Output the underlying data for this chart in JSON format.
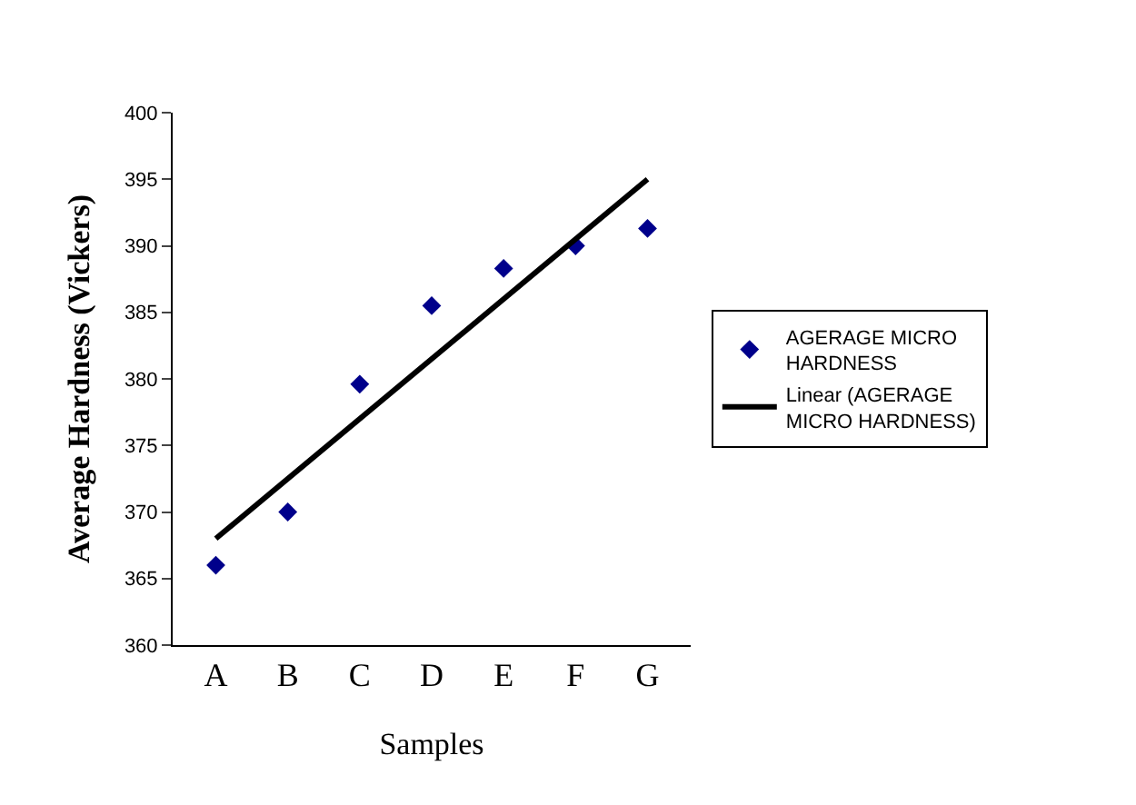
{
  "chart_data": {
    "type": "scatter",
    "xlabel": "Samples",
    "ylabel": "Average Hardness (Vickers)",
    "categories": [
      "A",
      "B",
      "C",
      "D",
      "E",
      "F",
      "G"
    ],
    "series": [
      {
        "name": "AGERAGE MICRO HARDNESS",
        "color": "#00008b",
        "marker": "diamond",
        "values": [
          366,
          370,
          379.6,
          385.5,
          388.3,
          390,
          391.3
        ]
      },
      {
        "name": "Linear (AGERAGE MICRO HARDNESS)",
        "type": "line",
        "color": "#000000",
        "line_style": "solid",
        "x": [
          "A",
          "G"
        ],
        "values": [
          368,
          395
        ]
      }
    ],
    "ylim": [
      360,
      400
    ],
    "yticks": [
      360,
      365,
      370,
      375,
      380,
      385,
      390,
      395,
      400
    ],
    "grid": false,
    "legend": "right"
  }
}
